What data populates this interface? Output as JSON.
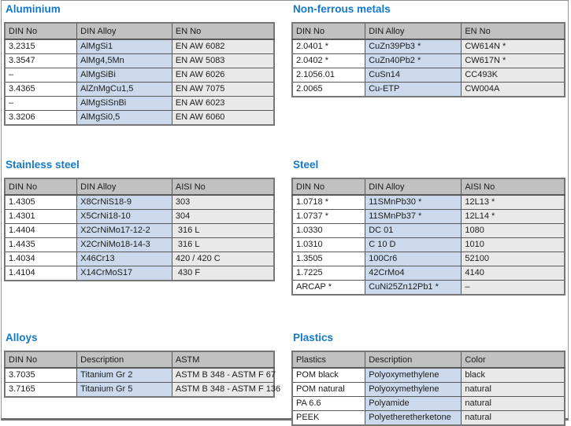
{
  "page": {
    "background": "#ffffff",
    "frame_border_color": "#919191",
    "frame_bottom_border_color": "#6f6f6f"
  },
  "colors": {
    "section_title": "#1578c8",
    "table_header_bg": "#c1c1c1",
    "first_col_bg": "#ffffff",
    "second_col_bg": "#ccd9ed",
    "third_col_bg": "#e9e9e9",
    "cell_border": "#595959",
    "text": "#1c1c1c"
  },
  "sections": [
    {
      "title": "Aluminium",
      "columns": [
        "DIN No",
        "DIN Alloy",
        "EN No"
      ],
      "rows": [
        [
          "3.2315",
          "AlMgSi1",
          "EN AW 6082"
        ],
        [
          "3.3547",
          "AlMg4,5Mn",
          "EN AW 5083"
        ],
        [
          "–",
          "AlMgSiBi",
          "EN AW 6026"
        ],
        [
          "3.4365",
          "AlZnMgCu1,5",
          "EN AW 7075"
        ],
        [
          "–",
          "AlMgSiSnBi",
          "EN AW 6023"
        ],
        [
          "3.3206",
          "AlMgSi0,5",
          "EN AW 6060"
        ]
      ]
    },
    {
      "title": "Non-ferrous metals",
      "columns": [
        "DIN No",
        "DIN Alloy",
        "EN No"
      ],
      "rows": [
        [
          "2.0401 *",
          "CuZn39Pb3 *",
          "CW614N *"
        ],
        [
          "2.0402 *",
          "CuZn40Pb2 *",
          "CW617N *"
        ],
        [
          "2.1056.01",
          "CuSn14",
          "CC493K"
        ],
        [
          "2.0065",
          "Cu-ETP",
          "CW004A"
        ]
      ]
    },
    {
      "title": "Stainless steel",
      "columns": [
        "DIN No",
        "DIN Alloy",
        "AISI No"
      ],
      "rows": [
        [
          "1.4305",
          "X8CrNiS18-9",
          "303"
        ],
        [
          "1.4301",
          "X5CrNi18-10",
          "304"
        ],
        [
          "1.4404",
          "X2CrNiMo17-12-2",
          " 316 L"
        ],
        [
          "1.4435",
          "X2CrNiMo18-14-3",
          " 316 L"
        ],
        [
          "1.4034",
          "X46Cr13",
          "420 / 420 C"
        ],
        [
          "1.4104",
          "X14CrMoS17",
          " 430 F"
        ]
      ]
    },
    {
      "title": "Steel",
      "columns": [
        "DIN No",
        "DIN Alloy",
        "AISI No"
      ],
      "rows": [
        [
          "1.0718 *",
          "11SMnPb30 *",
          "12L13 *"
        ],
        [
          "1.0737 *",
          "11SMnPb37 *",
          "12L14 *"
        ],
        [
          "1.0330",
          "DC 01",
          "1080"
        ],
        [
          "1.0310",
          "C 10 D",
          "1010"
        ],
        [
          "1.3505",
          "100Cr6",
          "52100"
        ],
        [
          "1.7225",
          "42CrMo4",
          "4140"
        ],
        [
          "ARCAP *",
          "CuNi25Zn12Pb1 *",
          "–"
        ]
      ]
    },
    {
      "title": "Alloys",
      "columns": [
        "DIN No",
        "Description",
        "ASTM"
      ],
      "rows": [
        [
          "3.7035",
          "Titanium Gr 2",
          "ASTM B 348 - ASTM F 67"
        ],
        [
          "3.7165",
          "Titanium Gr 5",
          "ASTM B 348 - ASTM F 136"
        ]
      ]
    },
    {
      "title": "Plastics",
      "columns": [
        "Plastics",
        "Description",
        "Color"
      ],
      "rows": [
        [
          "POM black",
          "Polyoxymethylene",
          "black"
        ],
        [
          "POM natural",
          "Polyoxymethylene",
          "natural"
        ],
        [
          "PA 6.6",
          "Polyamide",
          "natural"
        ],
        [
          "PEEK",
          "Polyetheretherketone",
          "natural"
        ]
      ]
    }
  ]
}
